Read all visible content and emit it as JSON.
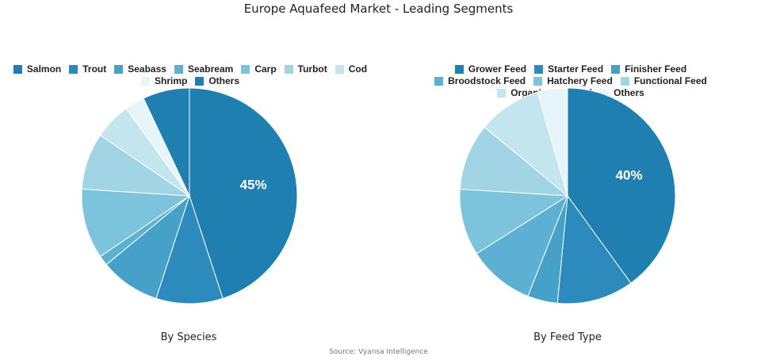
{
  "title": "Europe Aquafeed Market - Leading Segments",
  "source": "Source: Vyansa Intelligence",
  "chart_data": [
    {
      "type": "pie",
      "caption": "By Species",
      "categories": [
        "Salmon",
        "Trout",
        "Seabass",
        "Seabream",
        "Carp",
        "Turbot",
        "Cod",
        "Shrimp",
        "Others"
      ],
      "values": [
        45,
        10,
        9,
        1.5,
        10.5,
        8.5,
        5.5,
        3,
        7
      ],
      "colors": [
        "#1f7fb0",
        "#2c8bbc",
        "#45a1c7",
        "#5cb0d2",
        "#7cc3dc",
        "#a1d5e5",
        "#c3e6ee",
        "#e6f6f8",
        "#1f7fb0"
      ],
      "data_labels": [
        "45%",
        "",
        "",
        "",
        "",
        "",
        "",
        "",
        ""
      ],
      "start": "12 o'clock",
      "direction": "clockwise",
      "legend": "top"
    },
    {
      "type": "pie",
      "caption": "By Feed Type",
      "categories": [
        "Grower Feed",
        "Starter Feed",
        "Finisher Feed",
        "Broodstock Feed",
        "Hatchery Feed",
        "Functional Feed",
        "Organic Aquafeed",
        "Others"
      ],
      "values": [
        40,
        11.5,
        4.5,
        10,
        10,
        10,
        9.5,
        4.5
      ],
      "colors": [
        "#1f7fb0",
        "#2c8bbc",
        "#45a1c7",
        "#5cb0d2",
        "#7cc3dc",
        "#a1d5e5",
        "#c3e6ee",
        "#e6f6f8"
      ],
      "data_labels": [
        "40%",
        "",
        "",
        "",
        "",
        "",
        "",
        ""
      ],
      "start": "12 o'clock",
      "direction": "clockwise",
      "legend": "top"
    }
  ]
}
